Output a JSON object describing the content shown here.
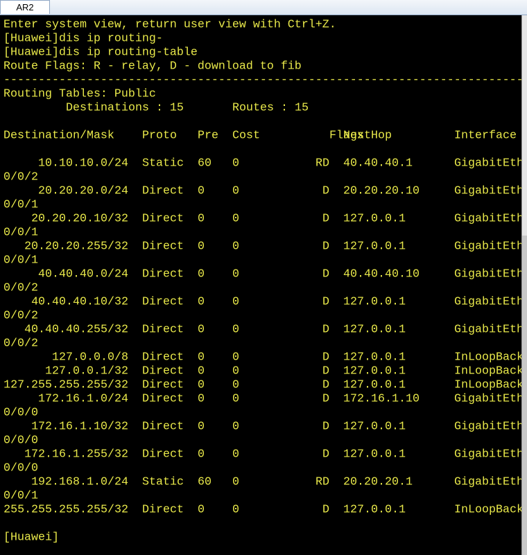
{
  "tab": "AR2",
  "preamble": [
    "Enter system view, return user view with Ctrl+Z.",
    "[Huawei]dis ip routing-",
    "[Huawei]dis ip routing-table",
    "Route Flags: R - relay, D - download to fib"
  ],
  "separator": "--------------------------------------------------------------------------------",
  "table_title": "Routing Tables: Public",
  "summary": [
    "Destinations : 15",
    "Routes : 15"
  ],
  "columns": [
    "Destination/Mask",
    "Proto",
    "Pre",
    "Cost",
    "Flags",
    "NextHop",
    "Interface"
  ],
  "rows": [
    {
      "destination": "10.10.10.0/24",
      "proto": "Static",
      "pre": "60",
      "cost": "0",
      "flags": "RD",
      "nexthop": "40.40.40.1",
      "interface": "GigabitEth",
      "wrap": "0/0/2"
    },
    {
      "destination": "20.20.20.0/24",
      "proto": "Direct",
      "pre": "0",
      "cost": "0",
      "flags": "D",
      "nexthop": "20.20.20.10",
      "interface": "GigabitEth",
      "wrap": "0/0/1"
    },
    {
      "destination": "20.20.20.10/32",
      "proto": "Direct",
      "pre": "0",
      "cost": "0",
      "flags": "D",
      "nexthop": "127.0.0.1",
      "interface": "GigabitEth",
      "wrap": "0/0/1"
    },
    {
      "destination": "20.20.20.255/32",
      "proto": "Direct",
      "pre": "0",
      "cost": "0",
      "flags": "D",
      "nexthop": "127.0.0.1",
      "interface": "GigabitEth",
      "wrap": "0/0/1"
    },
    {
      "destination": "40.40.40.0/24",
      "proto": "Direct",
      "pre": "0",
      "cost": "0",
      "flags": "D",
      "nexthop": "40.40.40.10",
      "interface": "GigabitEth",
      "wrap": "0/0/2"
    },
    {
      "destination": "40.40.40.10/32",
      "proto": "Direct",
      "pre": "0",
      "cost": "0",
      "flags": "D",
      "nexthop": "127.0.0.1",
      "interface": "GigabitEth",
      "wrap": "0/0/2"
    },
    {
      "destination": "40.40.40.255/32",
      "proto": "Direct",
      "pre": "0",
      "cost": "0",
      "flags": "D",
      "nexthop": "127.0.0.1",
      "interface": "GigabitEth",
      "wrap": "0/0/2"
    },
    {
      "destination": "127.0.0.0/8",
      "proto": "Direct",
      "pre": "0",
      "cost": "0",
      "flags": "D",
      "nexthop": "127.0.0.1",
      "interface": "InLoopBack"
    },
    {
      "destination": "127.0.0.1/32",
      "proto": "Direct",
      "pre": "0",
      "cost": "0",
      "flags": "D",
      "nexthop": "127.0.0.1",
      "interface": "InLoopBack"
    },
    {
      "destination": "127.255.255.255/32",
      "proto": "Direct",
      "pre": "0",
      "cost": "0",
      "flags": "D",
      "nexthop": "127.0.0.1",
      "interface": "InLoopBack"
    },
    {
      "destination": "172.16.1.0/24",
      "proto": "Direct",
      "pre": "0",
      "cost": "0",
      "flags": "D",
      "nexthop": "172.16.1.10",
      "interface": "GigabitEth",
      "wrap": "0/0/0"
    },
    {
      "destination": "172.16.1.10/32",
      "proto": "Direct",
      "pre": "0",
      "cost": "0",
      "flags": "D",
      "nexthop": "127.0.0.1",
      "interface": "GigabitEth",
      "wrap": "0/0/0"
    },
    {
      "destination": "172.16.1.255/32",
      "proto": "Direct",
      "pre": "0",
      "cost": "0",
      "flags": "D",
      "nexthop": "127.0.0.1",
      "interface": "GigabitEth",
      "wrap": "0/0/0"
    },
    {
      "destination": "192.168.1.0/24",
      "proto": "Static",
      "pre": "60",
      "cost": "0",
      "flags": "RD",
      "nexthop": "20.20.20.1",
      "interface": "GigabitEth",
      "wrap": "0/0/1"
    },
    {
      "destination": "255.255.255.255/32",
      "proto": "Direct",
      "pre": "0",
      "cost": "0",
      "flags": "D",
      "nexthop": "127.0.0.1",
      "interface": "InLoopBack"
    }
  ],
  "prompt": "[Huawei]"
}
